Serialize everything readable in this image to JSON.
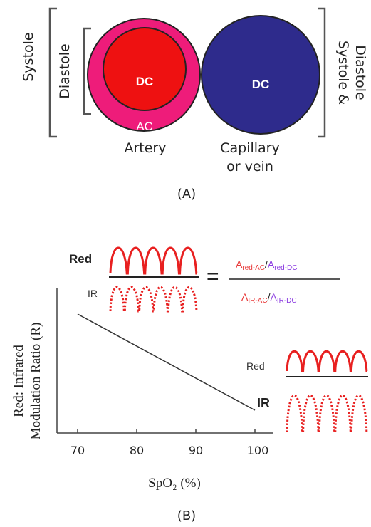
{
  "panel_a": {
    "label": "(A)",
    "systole_left": "Systole",
    "diastole_left": "Diastole",
    "systole_diastole_right_line1": "Systole &",
    "systole_diastole_right_line2": "Diastole",
    "artery_dc": "DC",
    "artery_ac": "AC",
    "vein_dc": "DC",
    "artery_label": "Artery",
    "capillary_label_line1": "Capillary",
    "capillary_label_line2": "or vein",
    "colors": {
      "artery_outer": "#ee1c7a",
      "artery_inner": "#ee1111",
      "vein": "#2e2b8c"
    }
  },
  "panel_b": {
    "label": "(B)",
    "y_axis_label_line1": "Red: Infrared",
    "y_axis_label_line2": "Modulation Ratio (R)",
    "x_axis_label": "SpO₂ (%)",
    "x_ticks": [
      "70",
      "80",
      "90",
      "100"
    ],
    "top_red_label": "Red",
    "top_ir_label": "IR",
    "equals": "=",
    "formula": {
      "num_a_main": "A",
      "num_a_sub": "red-AC",
      "slash": "/",
      "num_b_main": "A",
      "num_b_sub": "red-DC",
      "den_a_main": "A",
      "den_a_sub": "IR-AC",
      "den_b_main": "A",
      "den_b_sub": "IR-DC"
    },
    "bottom_red_label": "Red",
    "bottom_ir_label": "IR",
    "colors": {
      "red_wave": "#e82020",
      "formula_red": "#e83a3a",
      "formula_purple": "#8a3ae0",
      "line": "#333333"
    }
  },
  "chart_data": {
    "type": "line",
    "x": [
      70,
      100
    ],
    "y_relative": [
      "high",
      "low"
    ],
    "xlabel": "SpO₂ (%)",
    "ylabel": "Red: Infrared Modulation Ratio (R)",
    "x_ticks": [
      70,
      80,
      90,
      100
    ],
    "grid": false
  }
}
